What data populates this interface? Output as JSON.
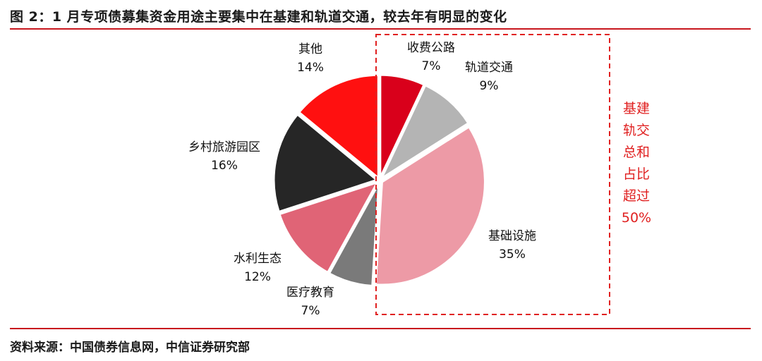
{
  "header": {
    "title": "图 2：1 月专项债募集资金用途主要集中在基建和轨道交通，较去年有明显的变化"
  },
  "footer": {
    "source": "资料来源：中国债券信息网，中信证券研究部"
  },
  "chart_data": {
    "type": "pie",
    "slices": [
      {
        "label": "收费公路",
        "value": 7,
        "display": "7%",
        "color": "#d9001b"
      },
      {
        "label": "轨道交通",
        "value": 9,
        "display": "9%",
        "color": "#b4b4b4"
      },
      {
        "label": "基础设施",
        "value": 35,
        "display": "35%",
        "color": "#ed9aa6"
      },
      {
        "label": "医疗教育",
        "value": 7,
        "display": "7%",
        "color": "#7a7a7a"
      },
      {
        "label": "水利生态",
        "value": 12,
        "display": "12%",
        "color": "#e06476"
      },
      {
        "label": "乡村旅游园区",
        "value": 16,
        "display": "16%",
        "color": "#262626"
      },
      {
        "label": "其他",
        "value": 14,
        "display": "14%",
        "color": "#ff1010"
      }
    ],
    "annotation": {
      "lines": [
        "基建",
        "轨交",
        "总和",
        "占比",
        "超过",
        "50%"
      ],
      "color": "#e02020"
    }
  }
}
